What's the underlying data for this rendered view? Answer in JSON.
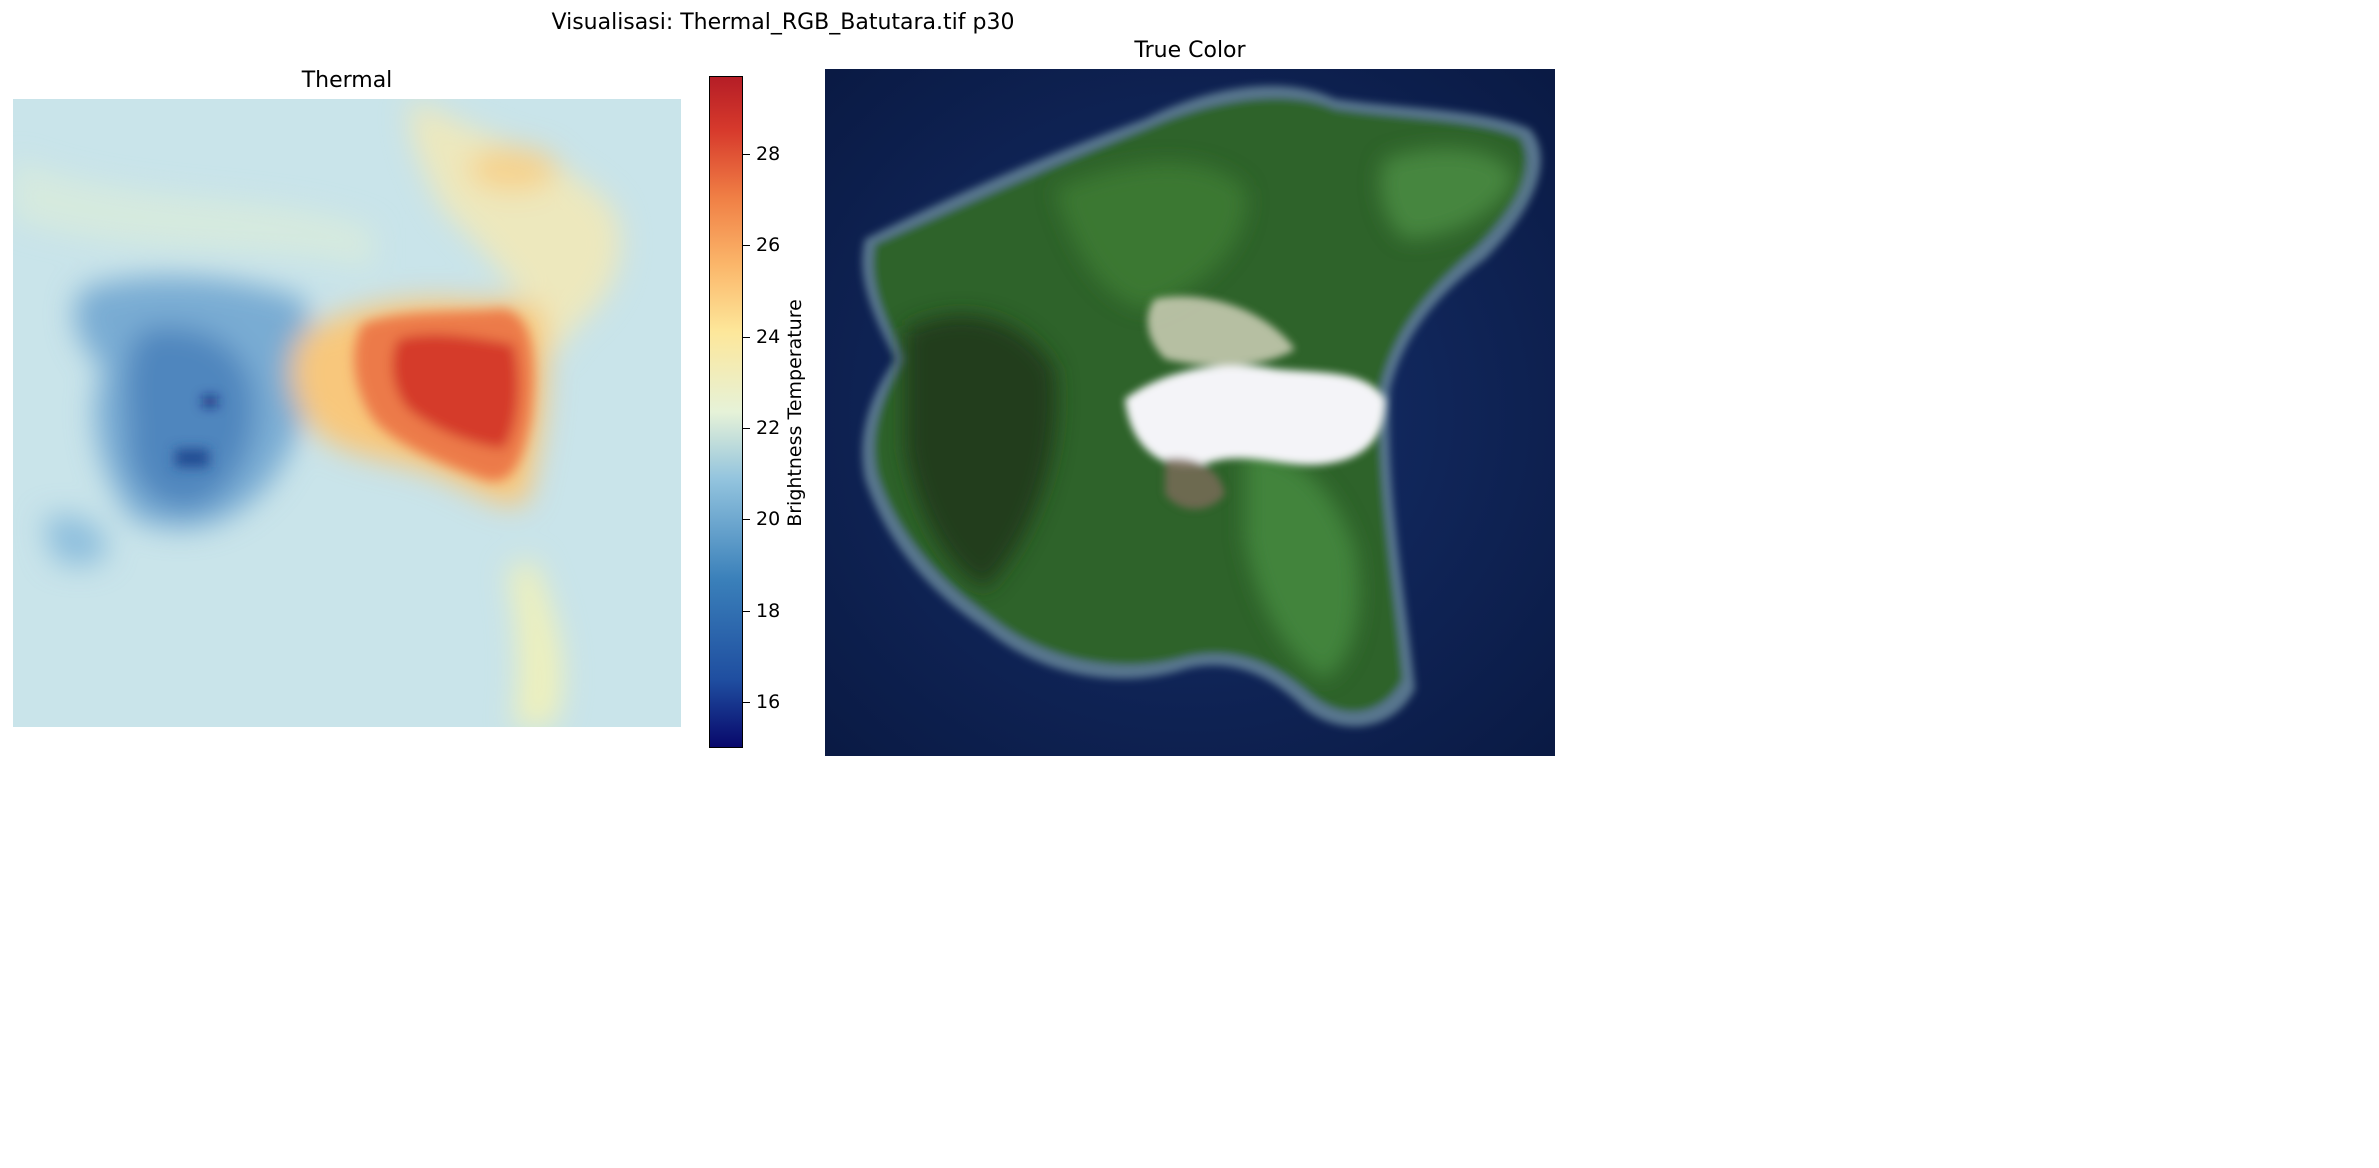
{
  "figure": {
    "suptitle": "Visualisasi: Thermal_RGB_Batutara.tif p30"
  },
  "thermal_panel": {
    "title": "Thermal",
    "colormap": "RdYlBu_r",
    "colorbar": {
      "label": "Brightness Temperature",
      "min": 15,
      "max": 29.7,
      "ticks": [
        "16",
        "18",
        "20",
        "22",
        "24",
        "26",
        "28"
      ]
    }
  },
  "truecolor_panel": {
    "title": "True Color"
  },
  "colors": {
    "hot": "#d73027",
    "warm": "#fdae61",
    "neutral": "#e0f3f8",
    "cool": "#abd9e9",
    "cold": "#4575b4",
    "ocean": "#0d1f4f",
    "vegetation": "#2f6a2a",
    "bare_ash": "#f3f4f8"
  }
}
